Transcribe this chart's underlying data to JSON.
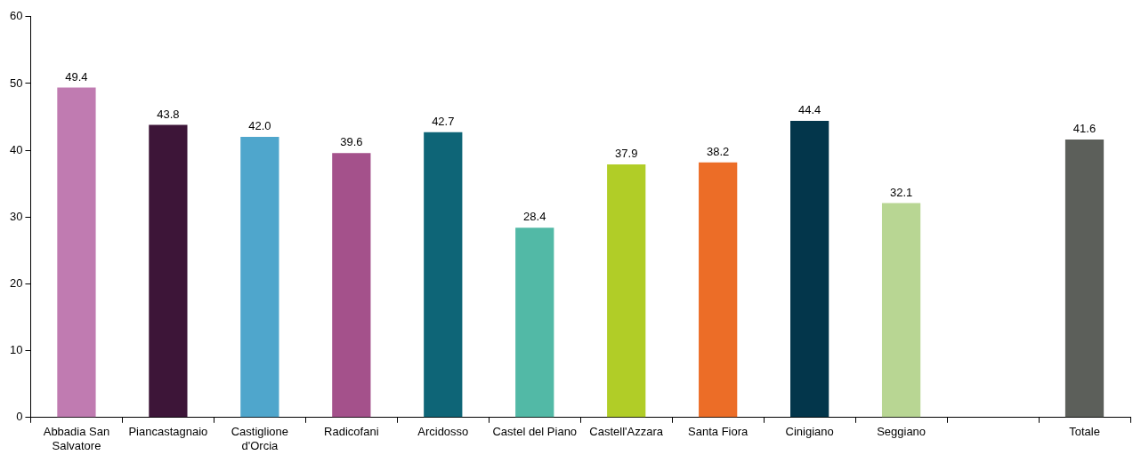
{
  "chart_data": {
    "type": "bar",
    "categories": [
      "Abbadia San Salvatore",
      "Piancastagnaio",
      "Castiglione d'Orcia",
      "Radicofani",
      "Arcidosso",
      "Castel del Piano",
      "Castell'Azzara",
      "Santa Fiora",
      "Cinigiano",
      "Seggiano",
      null,
      "Totale"
    ],
    "values": [
      49.4,
      43.8,
      42.0,
      39.6,
      42.7,
      28.4,
      37.9,
      38.2,
      44.4,
      32.1,
      null,
      41.6
    ],
    "value_labels": [
      "49.4",
      "43.8",
      "42.0",
      "39.6",
      "42.7",
      "28.4",
      "37.9",
      "38.2",
      "44.4",
      "32.1",
      null,
      "41.6"
    ],
    "colors": [
      "#c07bb1",
      "#3d1538",
      "#4fa6cc",
      "#a4518b",
      "#0e6577",
      "#52b9a6",
      "#b1cd27",
      "#ec6d27",
      "#03364b",
      "#b8d693",
      "#888888",
      "#5c5f5a"
    ],
    "ylim": [
      0,
      60
    ],
    "yticks": [
      0,
      10,
      20,
      30,
      40,
      50,
      60
    ],
    "grid": false,
    "legend": false
  }
}
